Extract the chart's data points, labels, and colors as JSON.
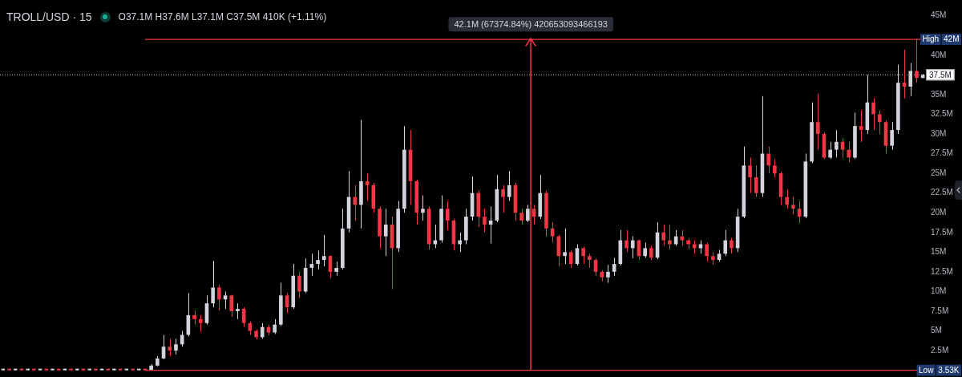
{
  "chart_data": {
    "type": "candlestick",
    "title": "TROLL/USD · 15",
    "subtitle": "O37.1M H37.6M L37.1M C37.5M 410K (+1.11%)",
    "categories": [
      null,
      null,
      null,
      null,
      null,
      null,
      null,
      null,
      null,
      null,
      null,
      null,
      null,
      null,
      null,
      null,
      null,
      null,
      null,
      null,
      null,
      null,
      null,
      null,
      null,
      null,
      null,
      null,
      null,
      null,
      null,
      null,
      null,
      null,
      null,
      null,
      null,
      null,
      null,
      null,
      null,
      null,
      null,
      null,
      null,
      null,
      null,
      null,
      null,
      null,
      null,
      null,
      null,
      null,
      null,
      null,
      null,
      null,
      null,
      null,
      null,
      null,
      null,
      null,
      null,
      null,
      null,
      null,
      null,
      null,
      null,
      null,
      null,
      null,
      null,
      null,
      null,
      null,
      null,
      null,
      null,
      null,
      null,
      null,
      null,
      null,
      null,
      null,
      null,
      null,
      null,
      null,
      null,
      null,
      null,
      null,
      null,
      null,
      null,
      null,
      null,
      null,
      null,
      null,
      null,
      null,
      null,
      null,
      null,
      null,
      null,
      null,
      null,
      null,
      null,
      null,
      null,
      null,
      null,
      null,
      null,
      null,
      null,
      null,
      null,
      null,
      null,
      null,
      null,
      null,
      null,
      null,
      null,
      null,
      null,
      null,
      null,
      null,
      null,
      null,
      null,
      null,
      null,
      null,
      null,
      null,
      null,
      null,
      null,
      null
    ],
    "ohlc": [
      [
        3530,
        200000,
        3530,
        200000
      ],
      [
        200000,
        200000,
        3530,
        3530
      ],
      [
        3530,
        200000,
        3530,
        200000
      ],
      [
        200000,
        200000,
        3530,
        3530
      ],
      [
        3530,
        200000,
        3530,
        200000
      ],
      [
        200000,
        200000,
        3530,
        3530
      ],
      [
        3530,
        200000,
        3530,
        200000
      ],
      [
        200000,
        200000,
        3530,
        3530
      ],
      [
        3530,
        200000,
        3530,
        200000
      ],
      [
        200000,
        200000,
        3530,
        3530
      ],
      [
        3530,
        200000,
        3530,
        200000
      ],
      [
        200000,
        200000,
        3530,
        3530
      ],
      [
        3530,
        200000,
        3530,
        200000
      ],
      [
        200000,
        200000,
        3530,
        3530
      ],
      [
        3530,
        200000,
        3530,
        200000
      ],
      [
        200000,
        200000,
        3530,
        3530
      ],
      [
        3530,
        200000,
        3530,
        200000
      ],
      [
        200000,
        200000,
        3530,
        3530
      ],
      [
        3530,
        200000,
        3530,
        200000
      ],
      [
        200000,
        200000,
        3530,
        3530
      ],
      [
        3530,
        200000,
        3530,
        200000
      ],
      [
        200000,
        200000,
        3530,
        3530
      ],
      [
        3530,
        200000,
        3530,
        200000
      ],
      [
        200000,
        200000,
        3530,
        3530
      ],
      [
        50000,
        800000,
        50000,
        600000
      ],
      [
        600000,
        1800000,
        500000,
        1500000
      ],
      [
        1500000,
        4500000,
        1400000,
        3000000
      ],
      [
        3000000,
        4000000,
        1800000,
        2500000
      ],
      [
        2500000,
        4000000,
        2000000,
        3300000
      ],
      [
        3300000,
        5000000,
        3000000,
        4500000
      ],
      [
        4500000,
        9800000,
        4300000,
        7000000
      ],
      [
        7000000,
        7600000,
        5800000,
        6500000
      ],
      [
        6500000,
        7000000,
        4900000,
        6000000
      ],
      [
        6000000,
        9500000,
        5800000,
        8500000
      ],
      [
        8500000,
        13900000,
        8000000,
        10500000
      ],
      [
        10500000,
        10800000,
        7600000,
        9000000
      ],
      [
        9000000,
        10000000,
        7800000,
        9500000
      ],
      [
        9500000,
        9600000,
        6800000,
        7500000
      ],
      [
        7500000,
        8500000,
        6500000,
        7800000
      ],
      [
        7800000,
        8000000,
        5500000,
        6000000
      ],
      [
        6000000,
        6200000,
        4500000,
        5000000
      ],
      [
        5000000,
        5200000,
        3900000,
        4200000
      ],
      [
        4200000,
        6000000,
        4000000,
        5500000
      ],
      [
        5500000,
        5800000,
        4400000,
        4800000
      ],
      [
        4800000,
        6500000,
        4600000,
        5800000
      ],
      [
        5800000,
        11100000,
        5600000,
        9500000
      ],
      [
        9500000,
        9800000,
        7300000,
        8000000
      ],
      [
        8000000,
        13500000,
        7800000,
        12000000
      ],
      [
        12000000,
        12500000,
        9200000,
        10000000
      ],
      [
        10000000,
        14200000,
        9800000,
        13000000
      ],
      [
        13000000,
        14800000,
        12000000,
        13500000
      ],
      [
        13500000,
        15200000,
        12800000,
        14000000
      ],
      [
        14000000,
        17200000,
        13200000,
        14500000
      ],
      [
        14500000,
        14600000,
        11700000,
        12500000
      ],
      [
        12500000,
        13800000,
        12000000,
        13000000
      ],
      [
        13000000,
        20500000,
        12800000,
        18000000
      ],
      [
        18000000,
        25300000,
        17500000,
        22000000
      ],
      [
        22000000,
        23500000,
        19000000,
        21000000
      ],
      [
        21000000,
        31800000,
        18000000,
        24000000
      ],
      [
        24000000,
        25000000,
        21500000,
        23500000
      ],
      [
        23500000,
        23800000,
        20000000,
        20500000
      ],
      [
        20500000,
        20800000,
        15500000,
        17000000
      ],
      [
        17000000,
        20500000,
        14500000,
        18500000
      ],
      [
        18500000,
        19500000,
        10300000,
        15500000
      ],
      [
        15500000,
        21500000,
        15000000,
        20500000
      ],
      [
        20500000,
        31000000,
        20000000,
        28000000
      ],
      [
        28000000,
        30500000,
        21000000,
        24000000
      ],
      [
        24000000,
        24200000,
        18500000,
        20000000
      ],
      [
        20000000,
        22200000,
        19000000,
        20500000
      ],
      [
        20500000,
        20800000,
        15300000,
        16000000
      ],
      [
        16000000,
        18500000,
        15500000,
        16500000
      ],
      [
        16500000,
        22200000,
        16200000,
        20500000
      ],
      [
        20500000,
        21500000,
        17800000,
        19000000
      ],
      [
        19000000,
        19200000,
        15200000,
        16000000
      ],
      [
        16000000,
        17500000,
        15000000,
        16500000
      ],
      [
        16500000,
        20500000,
        16000000,
        19500000
      ],
      [
        19500000,
        24600000,
        19000000,
        22500000
      ],
      [
        22500000,
        22800000,
        18200000,
        19500000
      ],
      [
        19500000,
        20500000,
        17500000,
        18500000
      ],
      [
        18500000,
        20800000,
        16100000,
        19000000
      ],
      [
        19000000,
        24800000,
        18800000,
        23000000
      ],
      [
        23000000,
        23500000,
        20000000,
        22000000
      ],
      [
        22000000,
        25300000,
        21500000,
        23500000
      ],
      [
        23500000,
        23800000,
        19000000,
        20000000
      ],
      [
        20000000,
        20500000,
        18500000,
        19000000
      ],
      [
        19000000,
        21000000,
        18800000,
        20500000
      ],
      [
        20500000,
        21000000,
        18500000,
        19500000
      ],
      [
        19500000,
        24800000,
        19200000,
        22500000
      ],
      [
        22500000,
        22800000,
        17000000,
        18000000
      ],
      [
        18000000,
        18800000,
        16200000,
        17000000
      ],
      [
        17000000,
        17200000,
        13200000,
        14500000
      ],
      [
        14500000,
        18000000,
        13500000,
        15000000
      ],
      [
        15000000,
        15200000,
        13000000,
        13500000
      ],
      [
        13500000,
        16000000,
        13300000,
        15500000
      ],
      [
        15500000,
        15700000,
        13500000,
        14500000
      ],
      [
        14500000,
        14800000,
        13000000,
        14000000
      ],
      [
        14000000,
        14200000,
        12000000,
        12500000
      ],
      [
        12500000,
        12700000,
        11300000,
        11800000
      ],
      [
        11800000,
        13400000,
        11100000,
        12500000
      ],
      [
        12500000,
        14300000,
        12000000,
        13500000
      ],
      [
        13500000,
        17800000,
        13300000,
        16500000
      ],
      [
        16500000,
        17800000,
        15000000,
        15500000
      ],
      [
        15500000,
        17000000,
        14200000,
        16500000
      ],
      [
        16500000,
        16600000,
        14000000,
        14500000
      ],
      [
        14500000,
        16200000,
        14300000,
        15500000
      ],
      [
        15500000,
        15800000,
        14000000,
        14300000
      ],
      [
        14300000,
        18800000,
        14100000,
        17500000
      ],
      [
        17500000,
        18500000,
        15800000,
        16500000
      ],
      [
        16500000,
        18500000,
        15400000,
        16000000
      ],
      [
        16000000,
        17800000,
        15800000,
        17000000
      ],
      [
        17000000,
        17800000,
        15800000,
        16500000
      ],
      [
        16500000,
        16800000,
        15400000,
        16000000
      ],
      [
        16000000,
        16500000,
        14800000,
        15500000
      ],
      [
        15500000,
        16500000,
        14800000,
        16000000
      ],
      [
        16000000,
        16200000,
        13800000,
        14500000
      ],
      [
        14500000,
        15000000,
        13400000,
        14000000
      ],
      [
        14000000,
        15300000,
        13800000,
        14800000
      ],
      [
        14800000,
        17800000,
        14500000,
        16500000
      ],
      [
        16500000,
        16800000,
        14800000,
        15500000
      ],
      [
        15500000,
        20500000,
        15000000,
        19500000
      ],
      [
        19500000,
        28400000,
        19300000,
        26000000
      ],
      [
        26000000,
        27000000,
        22500000,
        24500000
      ],
      [
        24500000,
        26000000,
        22000000,
        22500000
      ],
      [
        22500000,
        34800000,
        22000000,
        27500000
      ],
      [
        27500000,
        28400000,
        25000000,
        26000000
      ],
      [
        26000000,
        26800000,
        24500000,
        25000000
      ],
      [
        25000000,
        25200000,
        21000000,
        22000000
      ],
      [
        22000000,
        23000000,
        20500000,
        21000000
      ],
      [
        21000000,
        22000000,
        19800000,
        20500000
      ],
      [
        20500000,
        21500000,
        18700000,
        19500000
      ],
      [
        19500000,
        27500000,
        19300000,
        26500000
      ],
      [
        26500000,
        34000000,
        26300000,
        31500000
      ],
      [
        31500000,
        35100000,
        28000000,
        30000000
      ],
      [
        30000000,
        30200000,
        26800000,
        27000000
      ],
      [
        27000000,
        29000000,
        26800000,
        28000000
      ],
      [
        28000000,
        30500000,
        27000000,
        29000000
      ],
      [
        29000000,
        29500000,
        26900000,
        28000000
      ],
      [
        28000000,
        29000000,
        26400000,
        27000000
      ],
      [
        27000000,
        32700000,
        26800000,
        31000000
      ],
      [
        31000000,
        33000000,
        29000000,
        30500000
      ],
      [
        30500000,
        37500000,
        30000000,
        34000000
      ],
      [
        34000000,
        34500000,
        30500000,
        32500000
      ],
      [
        32500000,
        33000000,
        30000000,
        31500000
      ],
      [
        31500000,
        31700000,
        27500000,
        28500000
      ],
      [
        28500000,
        31500000,
        28000000,
        30500000
      ],
      [
        30500000,
        38800000,
        30000000,
        36500000
      ],
      [
        36500000,
        40700000,
        34500000,
        36000000
      ],
      [
        36000000,
        39000000,
        34800000,
        38000000
      ],
      [
        38000000,
        42100000,
        36500000,
        37100000
      ],
      [
        37100000,
        37600000,
        37100000,
        37500000
      ]
    ],
    "colors": [
      "#d1d4dc",
      "#f23645",
      "#d1d4dc",
      "#f23645",
      "#d1d4dc",
      "#f23645",
      "#d1d4dc",
      "#f23645",
      "#d1d4dc",
      "#f23645",
      "#d1d4dc",
      "#f23645",
      "#d1d4dc",
      "#f23645",
      "#d1d4dc",
      "#f23645",
      "#d1d4dc",
      "#f23645",
      "#d1d4dc",
      "#f23645",
      "#d1d4dc",
      "#f23645",
      "#d1d4dc",
      "#f23645",
      "#d1d4dc",
      "#d1d4dc",
      "#d1d4dc",
      "#f23645",
      "#d1d4dc",
      "#d1d4dc",
      "#d1d4dc",
      "#f23645",
      "#f23645",
      "#d1d4dc",
      "#d1d4dc",
      "#f23645",
      "#d1d4dc",
      "#f23645",
      "#d1d4dc",
      "#f23645",
      "#f23645",
      "#f23645",
      "#d1d4dc",
      "#f23645",
      "#d1d4dc",
      "#d1d4dc",
      "#f23645",
      "#d1d4dc",
      "#f23645",
      "#d1d4dc",
      "#d1d4dc",
      "#d1d4dc",
      "#d1d4dc",
      "#f23645",
      "#d1d4dc",
      "#d1d4dc",
      "#d1d4dc",
      "#f23645",
      "#d1d4dc",
      "#f23645",
      "#f23645",
      "#f23645",
      "#d1d4dc",
      "#f23645",
      "#d1d4dc",
      "#d1d4dc",
      "#f23645",
      "#f23645",
      "#d1d4dc",
      "#f23645",
      "#d1d4dc",
      "#d1d4dc",
      "#f23645",
      "#f23645",
      "#d1d4dc",
      "#d1d4dc",
      "#d1d4dc",
      "#f23645",
      "#f23645",
      "#d1d4dc",
      "#d1d4dc",
      "#f23645",
      "#d1d4dc",
      "#f23645",
      "#f23645",
      "#d1d4dc",
      "#f23645",
      "#d1d4dc",
      "#f23645",
      "#f23645",
      "#f23645",
      "#d1d4dc",
      "#f23645",
      "#d1d4dc",
      "#f23645",
      "#f23645",
      "#f23645",
      "#f23645",
      "#d1d4dc",
      "#d1d4dc",
      "#d1d4dc",
      "#f23645",
      "#d1d4dc",
      "#f23645",
      "#d1d4dc",
      "#f23645",
      "#d1d4dc",
      "#f23645",
      "#f23645",
      "#d1d4dc",
      "#f23645",
      "#f23645",
      "#f23645",
      "#d1d4dc",
      "#f23645",
      "#f23645",
      "#d1d4dc",
      "#d1d4dc",
      "#f23645",
      "#d1d4dc",
      "#d1d4dc",
      "#f23645",
      "#f23645",
      "#d1d4dc",
      "#f23645",
      "#f23645",
      "#f23645",
      "#f23645",
      "#f23645",
      "#f23645",
      "#d1d4dc",
      "#d1d4dc",
      "#f23645",
      "#f23645",
      "#d1d4dc",
      "#d1d4dc",
      "#f23645",
      "#f23645",
      "#d1d4dc",
      "#f23645",
      "#d1d4dc",
      "#f23645",
      "#f23645",
      "#f23645",
      "#d1d4dc",
      "#d1d4dc",
      "#f23645",
      "#d1d4dc",
      "#f23645",
      "#d1d4dc"
    ],
    "ylim": [
      -850000,
      47000000
    ],
    "yticks": [
      {
        "value": 2500000,
        "label": "2.5M"
      },
      {
        "value": 5000000,
        "label": "5M"
      },
      {
        "value": 7500000,
        "label": "7.5M"
      },
      {
        "value": 10000000,
        "label": "10M"
      },
      {
        "value": 12500000,
        "label": "12.5M"
      },
      {
        "value": 15000000,
        "label": "15M"
      },
      {
        "value": 17500000,
        "label": "17.5M"
      },
      {
        "value": 20000000,
        "label": "20M"
      },
      {
        "value": 22500000,
        "label": "22.5M"
      },
      {
        "value": 25000000,
        "label": "25M"
      },
      {
        "value": 27500000,
        "label": "27.5M"
      },
      {
        "value": 30000000,
        "label": "30M"
      },
      {
        "value": 32500000,
        "label": "32.5M"
      },
      {
        "value": 35000000,
        "label": "35M"
      },
      {
        "value": 40000000,
        "label": "40M"
      },
      {
        "value": 45000000,
        "label": "45M"
      }
    ],
    "ref_lines": [
      {
        "axis": "y",
        "value": 42000000,
        "label": "High 42M",
        "color": "#f23645"
      },
      {
        "axis": "y",
        "value": 3530,
        "label": "Low 3.53K",
        "color": "#f23645"
      },
      {
        "axis": "y",
        "value": 37500000,
        "label": "37.5M",
        "color": "#9598a1",
        "line_style": "dotted"
      }
    ],
    "annotations": [
      {
        "text": "42.1M (67374.84%) 420653093466193",
        "y": 42100000
      }
    ]
  }
}
